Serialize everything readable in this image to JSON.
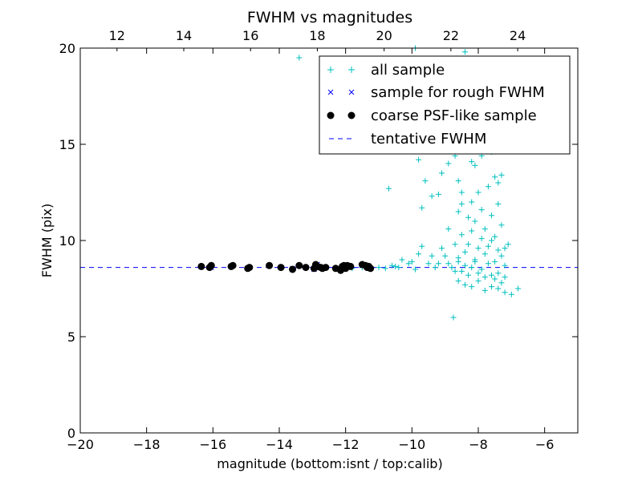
{
  "chart_data": {
    "type": "scatter",
    "title": "FWHM vs magnitudes",
    "xlabel": "magnitude (bottom:isnt / top:calib)",
    "ylabel": "FWHM (pix)",
    "xlim": [
      -20,
      -5
    ],
    "ylim": [
      0,
      20
    ],
    "top_xlim": [
      10.9,
      25.8
    ],
    "x_ticks": [
      -20,
      -18,
      -16,
      -14,
      -12,
      -10,
      -8,
      -6
    ],
    "x_tick_labels": [
      "−20",
      "−18",
      "−16",
      "−14",
      "−12",
      "−10",
      "−8",
      "−6"
    ],
    "y_ticks": [
      0,
      5,
      10,
      15,
      20
    ],
    "y_tick_labels": [
      "0",
      "5",
      "10",
      "15",
      "20"
    ],
    "top_ticks": [
      12,
      14,
      16,
      18,
      20,
      22,
      24
    ],
    "top_tick_labels": [
      "12",
      "14",
      "16",
      "18",
      "20",
      "22",
      "24"
    ],
    "grid": false,
    "legend_position": "upper-right",
    "colors": {
      "all": "#00bfbf",
      "rough": "#0000ff",
      "coarse": "#000000",
      "tentative": "#0000ff"
    },
    "series": [
      {
        "name": "all sample",
        "marker": "+",
        "points": [
          [
            -13.4,
            19.5
          ],
          [
            -8.4,
            19.8
          ],
          [
            -9.9,
            20.0
          ],
          [
            -10.7,
            12.7
          ],
          [
            -9.8,
            14.2
          ],
          [
            -9.6,
            13.1
          ],
          [
            -9.7,
            11.7
          ],
          [
            -9.4,
            12.3
          ],
          [
            -9.2,
            12.4
          ],
          [
            -9.1,
            13.5
          ],
          [
            -8.9,
            14.0
          ],
          [
            -8.8,
            15.8
          ],
          [
            -8.7,
            14.4
          ],
          [
            -8.6,
            13.1
          ],
          [
            -8.5,
            12.5
          ],
          [
            -8.4,
            14.9
          ],
          [
            -8.3,
            16.9
          ],
          [
            -8.2,
            14.1
          ],
          [
            -8.1,
            13.9
          ],
          [
            -8.0,
            15.0
          ],
          [
            -7.9,
            14.4
          ],
          [
            -7.8,
            15.5
          ],
          [
            -7.7,
            16.2
          ],
          [
            -7.6,
            14.6
          ],
          [
            -7.5,
            13.3
          ],
          [
            -7.4,
            13.0
          ],
          [
            -7.3,
            13.4
          ],
          [
            -8.9,
            10.6
          ],
          [
            -8.6,
            11.5
          ],
          [
            -8.5,
            11.9
          ],
          [
            -8.3,
            11.2
          ],
          [
            -8.2,
            12.0
          ],
          [
            -8.1,
            11.0
          ],
          [
            -8.0,
            12.5
          ],
          [
            -7.9,
            11.6
          ],
          [
            -7.8,
            10.6
          ],
          [
            -7.7,
            12.8
          ],
          [
            -7.6,
            11.3
          ],
          [
            -7.5,
            10.2
          ],
          [
            -7.4,
            11.9
          ],
          [
            -7.3,
            10.8
          ],
          [
            -7.2,
            9.6
          ],
          [
            -8.7,
            9.8
          ],
          [
            -8.6,
            9.1
          ],
          [
            -8.5,
            10.3
          ],
          [
            -8.4,
            9.4
          ],
          [
            -8.3,
            9.8
          ],
          [
            -8.2,
            10.5
          ],
          [
            -8.1,
            9.0
          ],
          [
            -8.0,
            9.6
          ],
          [
            -7.9,
            10.1
          ],
          [
            -7.8,
            9.3
          ],
          [
            -7.7,
            9.7
          ],
          [
            -7.6,
            10.0
          ],
          [
            -7.5,
            8.9
          ],
          [
            -7.4,
            9.5
          ],
          [
            -7.3,
            9.2
          ],
          [
            -7.2,
            8.7
          ],
          [
            -7.1,
            9.8
          ],
          [
            -10.6,
            8.7
          ],
          [
            -10.4,
            8.6
          ],
          [
            -10.3,
            9.0
          ],
          [
            -10.1,
            8.8
          ],
          [
            -10.0,
            8.9
          ],
          [
            -9.9,
            8.5
          ],
          [
            -9.8,
            9.3
          ],
          [
            -9.7,
            9.7
          ],
          [
            -9.5,
            8.8
          ],
          [
            -9.4,
            9.2
          ],
          [
            -9.3,
            8.6
          ],
          [
            -9.2,
            8.8
          ],
          [
            -9.1,
            9.6
          ],
          [
            -9.0,
            9.2
          ],
          [
            -8.9,
            8.8
          ],
          [
            -8.8,
            8.6
          ],
          [
            -8.7,
            8.4
          ],
          [
            -8.6,
            8.9
          ],
          [
            -8.5,
            8.4
          ],
          [
            -8.4,
            8.7
          ],
          [
            -8.3,
            8.2
          ],
          [
            -8.2,
            8.6
          ],
          [
            -8.1,
            8.9
          ],
          [
            -8.0,
            8.3
          ],
          [
            -7.9,
            8.5
          ],
          [
            -7.8,
            8.1
          ],
          [
            -7.7,
            8.8
          ],
          [
            -7.6,
            8.2
          ],
          [
            -7.5,
            8.0
          ],
          [
            -7.4,
            8.3
          ],
          [
            -7.3,
            7.8
          ],
          [
            -7.2,
            8.1
          ],
          [
            -8.6,
            7.9
          ],
          [
            -8.4,
            7.7
          ],
          [
            -8.2,
            7.6
          ],
          [
            -8.0,
            7.9
          ],
          [
            -7.8,
            7.4
          ],
          [
            -7.6,
            7.6
          ],
          [
            -7.4,
            7.5
          ],
          [
            -7.2,
            7.3
          ],
          [
            -7.0,
            7.2
          ],
          [
            -6.8,
            7.5
          ],
          [
            -8.75,
            6.0
          ],
          [
            -11.3,
            8.7
          ],
          [
            -11.0,
            8.6
          ],
          [
            -10.8,
            8.55
          ],
          [
            -10.5,
            8.65
          ],
          [
            -11.5,
            8.6
          ],
          [
            -11.8,
            8.55
          ],
          [
            -12.0,
            8.7
          ]
        ]
      },
      {
        "name": "sample for rough FWHM",
        "marker": "x",
        "points": [
          [
            -16.35,
            8.65
          ],
          [
            -16.05,
            8.6
          ],
          [
            -15.45,
            8.65
          ],
          [
            -14.95,
            8.55
          ],
          [
            -14.3,
            8.7
          ],
          [
            -13.95,
            8.6
          ],
          [
            -13.6,
            8.55
          ],
          [
            -13.4,
            8.7
          ],
          [
            -13.2,
            8.6
          ],
          [
            -12.95,
            8.5
          ],
          [
            -12.85,
            8.75
          ],
          [
            -12.75,
            8.6
          ],
          [
            -12.6,
            8.6
          ],
          [
            -12.25,
            8.55
          ],
          [
            -12.1,
            8.6
          ],
          [
            -12.0,
            8.7
          ],
          [
            -11.85,
            8.65
          ],
          [
            -11.5,
            8.7
          ],
          [
            -11.35,
            8.65
          ],
          [
            -11.25,
            8.55
          ]
        ]
      },
      {
        "name": "coarse PSF-like sample",
        "marker": "o",
        "points": [
          [
            -16.35,
            8.65
          ],
          [
            -16.1,
            8.6
          ],
          [
            -16.05,
            8.7
          ],
          [
            -15.45,
            8.65
          ],
          [
            -15.4,
            8.7
          ],
          [
            -14.95,
            8.55
          ],
          [
            -14.9,
            8.6
          ],
          [
            -14.3,
            8.7
          ],
          [
            -13.95,
            8.6
          ],
          [
            -13.6,
            8.5
          ],
          [
            -13.4,
            8.7
          ],
          [
            -13.2,
            8.6
          ],
          [
            -12.95,
            8.55
          ],
          [
            -12.9,
            8.75
          ],
          [
            -12.85,
            8.65
          ],
          [
            -12.75,
            8.6
          ],
          [
            -12.7,
            8.55
          ],
          [
            -12.6,
            8.6
          ],
          [
            -12.3,
            8.55
          ],
          [
            -12.15,
            8.45
          ],
          [
            -12.1,
            8.65
          ],
          [
            -12.05,
            8.7
          ],
          [
            -12.0,
            8.55
          ],
          [
            -11.95,
            8.7
          ],
          [
            -11.85,
            8.65
          ],
          [
            -11.5,
            8.75
          ],
          [
            -11.4,
            8.7
          ],
          [
            -11.35,
            8.6
          ],
          [
            -11.3,
            8.65
          ],
          [
            -11.25,
            8.55
          ]
        ]
      },
      {
        "name": "tentative FWHM",
        "marker": "dashed-line",
        "y": 8.6
      }
    ]
  }
}
